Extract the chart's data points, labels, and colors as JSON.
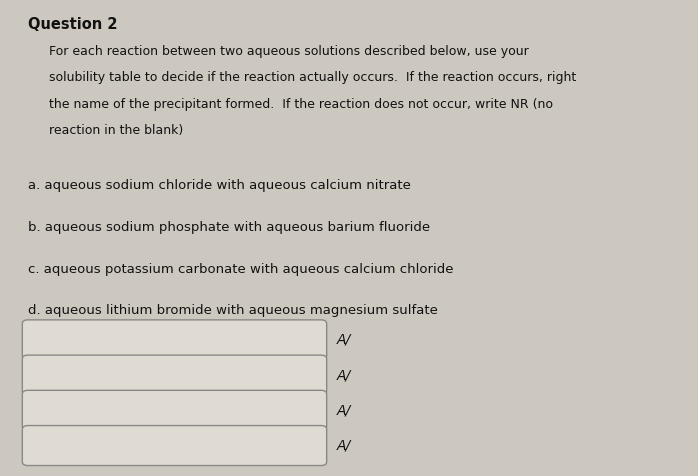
{
  "title": "Question 2",
  "body_text_lines": [
    "For each reaction between two aqueous solutions described below, use your",
    "solubility table to decide if the reaction actually occurs.  If the reaction occurs, right",
    "the name of the precipitant formed.  If the reaction does not occur, write NR (no",
    "reaction in the blank)"
  ],
  "questions": [
    "a. aqueous sodium chloride with aqueous calcium nitrate",
    "b. aqueous sodium phosphate with aqueous barium fluoride",
    "c. aqueous potassium carbonate with aqueous calcium chloride",
    "d. aqueous lithium bromide with aqueous magnesium sulfate"
  ],
  "answer_symbol": "A/",
  "background_color": "#cdc8bf",
  "box_color": "#e0dbd2",
  "box_border_color": "#888888",
  "text_color": "#111111",
  "title_fontsize": 10.5,
  "body_fontsize": 9.0,
  "question_fontsize": 9.5,
  "figsize": [
    6.98,
    4.76
  ],
  "dpi": 100
}
